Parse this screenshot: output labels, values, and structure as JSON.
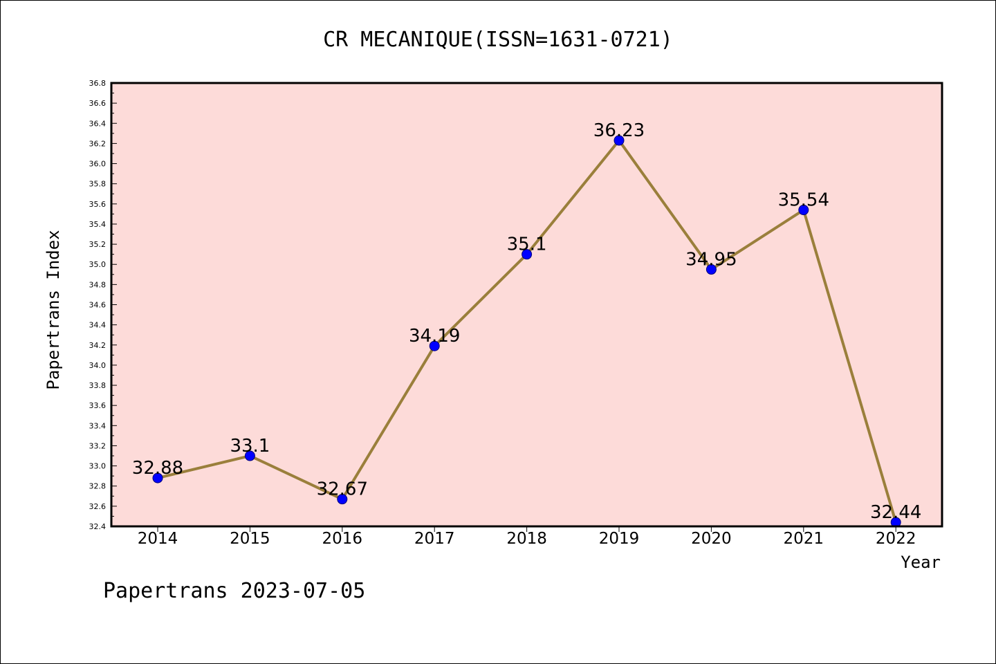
{
  "chart_data": {
    "type": "line",
    "title": "CR MECANIQUE(ISSN=1631-0721)",
    "xlabel": "Year",
    "ylabel": "Papertrans Index",
    "categories": [
      "2014",
      "2015",
      "2016",
      "2017",
      "2018",
      "2019",
      "2020",
      "2021",
      "2022"
    ],
    "series": [
      {
        "values": [
          32.88,
          33.1,
          32.67,
          34.19,
          35.1,
          36.23,
          34.95,
          35.54,
          32.44
        ],
        "labels": [
          "32.88",
          "33.1",
          "32.67",
          "34.19",
          "35.1",
          "36.23",
          "34.95",
          "35.54",
          "32.44"
        ]
      }
    ],
    "ylim": [
      32.4,
      36.8
    ],
    "yticks": [
      "32.4",
      "32.6",
      "32.8",
      "33.0",
      "33.2",
      "33.4",
      "33.6",
      "33.8",
      "34.0",
      "34.2",
      "34.4",
      "34.6",
      "34.8",
      "35.0",
      "35.2",
      "35.4",
      "35.6",
      "35.8",
      "36.0",
      "36.2",
      "36.4",
      "36.6",
      "36.8"
    ],
    "grid": false,
    "colors": {
      "plot_background": "#fddbd9",
      "line": "#9a7f3b",
      "marker": "#0000ff"
    }
  },
  "footer": "Papertrans 2023-07-05"
}
